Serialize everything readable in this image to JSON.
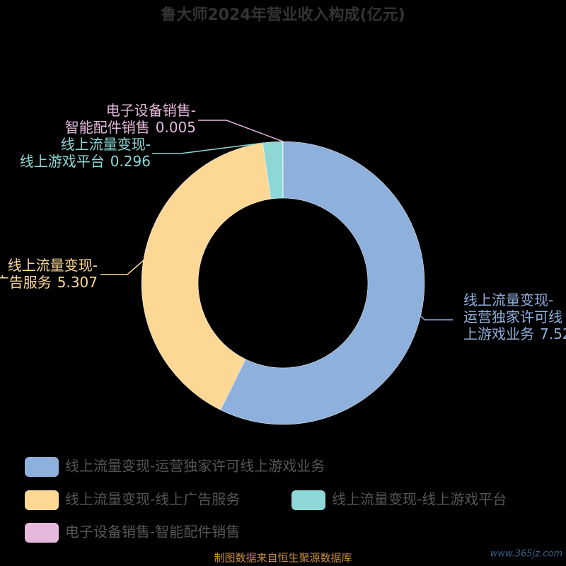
{
  "chart_data": {
    "type": "donut",
    "title": "鲁大师2024年营业收入构成(亿元)",
    "categories": [
      "线上流量变现-运营独家许可线上游戏业务",
      "线上流量变现-线上广告服务",
      "线上流量变现-线上游戏平台",
      "电子设备销售-智能配件销售"
    ],
    "values": [
      7.52,
      5.307,
      0.296,
      0.005
    ],
    "colors": [
      "#8eb0dc",
      "#fdd895",
      "#8dd8d6",
      "#e5b8dc"
    ],
    "label_lines": [
      [
        "线上流量变现-",
        "运营独家许可线",
        "上游戏业务"
      ],
      [
        "线上流量变现-",
        "线上广告服务"
      ],
      [
        "线上流量变现-",
        "线上游戏平台"
      ],
      [
        "电子设备销售-",
        "智能配件销售"
      ]
    ],
    "source": "制图数据来自恒生聚源数据库",
    "watermark": "www.365jz.com"
  }
}
